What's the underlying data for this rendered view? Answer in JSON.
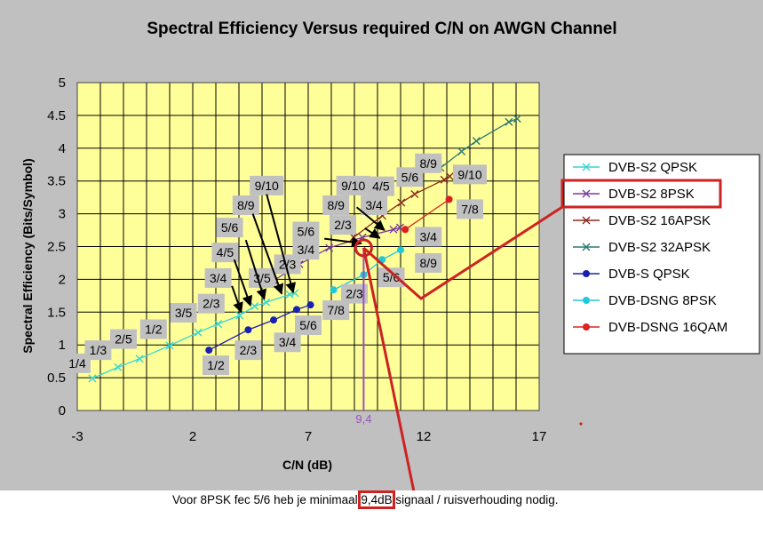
{
  "chart_data": {
    "type": "scatter",
    "title": "Spectral Efficiency Versus required C/N on AWGN Channel",
    "xlabel": "C/N (dB)",
    "ylabel": "Spectral Efficiency (Bits/Symbol)",
    "xlim": [
      -3,
      17
    ],
    "ylim": [
      0,
      5
    ],
    "xticks": [
      "-3",
      "2",
      "7",
      "12",
      "17"
    ],
    "yticks": [
      "0",
      "0.5",
      "1",
      "1.5",
      "2",
      "2.5",
      "3",
      "3.5",
      "4",
      "4.5",
      "5"
    ],
    "grid": true,
    "legend_position": "right",
    "series": [
      {
        "name": "DVB-S2 QPSK",
        "color": "#33d6d6",
        "marker": "x",
        "line": true,
        "points": [
          [
            -2.35,
            0.49
          ],
          [
            -1.24,
            0.66
          ],
          [
            -0.3,
            0.79
          ],
          [
            1.0,
            0.99
          ],
          [
            2.23,
            1.19
          ],
          [
            3.1,
            1.32
          ],
          [
            4.03,
            1.45
          ],
          [
            4.68,
            1.59
          ],
          [
            5.18,
            1.65
          ],
          [
            6.2,
            1.77
          ],
          [
            6.42,
            1.79
          ]
        ]
      },
      {
        "name": "DVB-S2 8PSK",
        "color": "#7a3a9a",
        "marker": "x",
        "line": true,
        "points": [
          [
            5.5,
            1.98
          ],
          [
            6.62,
            2.23
          ],
          [
            7.91,
            2.48
          ],
          [
            9.35,
            2.64
          ],
          [
            10.69,
            2.76
          ],
          [
            10.98,
            2.79
          ]
        ]
      },
      {
        "name": "DVB-S2 16APSK",
        "color": "#8b2a1a",
        "marker": "x",
        "line": true,
        "points": [
          [
            8.97,
            2.64
          ],
          [
            10.21,
            2.97
          ],
          [
            11.03,
            3.17
          ],
          [
            11.61,
            3.3
          ],
          [
            12.89,
            3.52
          ],
          [
            13.13,
            3.57
          ]
        ]
      },
      {
        "name": "DVB-S2 32APSK",
        "color": "#2a7a70",
        "marker": "x",
        "line": true,
        "points": [
          [
            12.73,
            3.7
          ],
          [
            13.64,
            3.95
          ],
          [
            14.28,
            4.11
          ],
          [
            15.69,
            4.4
          ],
          [
            16.05,
            4.45
          ]
        ]
      },
      {
        "name": "DVB-S QPSK",
        "color": "#1a20b0",
        "marker": "dot",
        "line": true,
        "points": [
          [
            2.7,
            0.92
          ],
          [
            4.4,
            1.23
          ],
          [
            5.5,
            1.38
          ],
          [
            6.5,
            1.54
          ],
          [
            7.1,
            1.61
          ]
        ]
      },
      {
        "name": "DVB-DSNG 8PSK",
        "color": "#20c8d8",
        "marker": "dot",
        "line": true,
        "points": [
          [
            8.1,
            1.84
          ],
          [
            9.4,
            2.07
          ],
          [
            10.2,
            2.3
          ],
          [
            11.0,
            2.45
          ]
        ]
      },
      {
        "name": "DVB-DSNG 16QAM",
        "color": "#dd2020",
        "marker": "dot",
        "line": true,
        "points": [
          [
            11.2,
            2.76
          ],
          [
            13.1,
            3.22
          ]
        ]
      }
    ],
    "annotations": [
      {
        "text": "1/4",
        "x": -3.0,
        "y": 0.72
      },
      {
        "text": "1/3",
        "x": -2.1,
        "y": 0.92
      },
      {
        "text": "2/5",
        "x": -1.0,
        "y": 1.09
      },
      {
        "text": "1/2",
        "x": 0.3,
        "y": 1.24
      },
      {
        "text": "3/5",
        "x": 1.6,
        "y": 1.49
      },
      {
        "text": "2/3",
        "x": 2.8,
        "y": 1.63
      },
      {
        "text": "3/4",
        "x": 3.1,
        "y": 2.02
      },
      {
        "text": "4/5",
        "x": 3.4,
        "y": 2.41
      },
      {
        "text": "5/6",
        "x": 3.6,
        "y": 2.79
      },
      {
        "text": "8/9",
        "x": 4.3,
        "y": 3.13
      },
      {
        "text": "9/10",
        "x": 5.2,
        "y": 3.43
      },
      {
        "text": "3/5",
        "x": 5.0,
        "y": 2.02
      },
      {
        "text": "2/3",
        "x": 6.1,
        "y": 2.23
      },
      {
        "text": "3/4",
        "x": 6.9,
        "y": 2.45
      },
      {
        "text": "5/6",
        "x": 6.9,
        "y": 2.73
      },
      {
        "text": "8/9",
        "x": 8.2,
        "y": 3.13
      },
      {
        "text": "9/10",
        "x": 8.95,
        "y": 3.43
      },
      {
        "text": "2/3",
        "x": 8.5,
        "y": 2.83
      },
      {
        "text": "3/4",
        "x": 9.85,
        "y": 3.13
      },
      {
        "text": "4/5",
        "x": 10.15,
        "y": 3.42
      },
      {
        "text": "5/6",
        "x": 11.4,
        "y": 3.56
      },
      {
        "text": "8/9",
        "x": 12.2,
        "y": 3.77
      },
      {
        "text": "9/10",
        "x": 14.0,
        "y": 3.6
      },
      {
        "text": "7/8",
        "x": 14.0,
        "y": 3.07
      },
      {
        "text": "3/4",
        "x": 12.2,
        "y": 2.65
      },
      {
        "text": "8/9",
        "x": 12.2,
        "y": 2.25
      },
      {
        "text": "5/6",
        "x": 10.6,
        "y": 2.03
      },
      {
        "text": "2/3",
        "x": 9.0,
        "y": 1.78
      },
      {
        "text": "7/8",
        "x": 8.2,
        "y": 1.53
      },
      {
        "text": "5/6",
        "x": 7.0,
        "y": 1.3
      },
      {
        "text": "3/4",
        "x": 6.1,
        "y": 1.04
      },
      {
        "text": "2/3",
        "x": 4.4,
        "y": 0.92
      },
      {
        "text": "1/2",
        "x": 3.0,
        "y": 0.69
      }
    ],
    "arrows": [
      {
        "from": [
          3.7,
          1.9
        ],
        "to": [
          4.1,
          1.5
        ]
      },
      {
        "from": [
          3.8,
          2.3
        ],
        "to": [
          4.5,
          1.6
        ]
      },
      {
        "from": [
          4.3,
          2.6
        ],
        "to": [
          5.1,
          1.7
        ]
      },
      {
        "from": [
          4.6,
          3.0
        ],
        "to": [
          5.85,
          1.78
        ]
      },
      {
        "from": [
          5.2,
          3.3
        ],
        "to": [
          6.35,
          1.8
        ]
      },
      {
        "from": [
          7.7,
          2.62
        ],
        "to": [
          9.3,
          2.55
        ]
      },
      {
        "from": [
          9.1,
          3.1
        ],
        "to": [
          10.3,
          2.75
        ]
      },
      {
        "from": [
          9.45,
          2.78
        ],
        "to": [
          10.1,
          2.63
        ]
      }
    ],
    "marker_value": {
      "label": "9,4",
      "x": 9.4,
      "y": 2.48
    }
  },
  "caption": {
    "before": "Voor 8PSK fec 5/6 heb je minimaal ",
    "highlight": "9,4dB",
    "after": " signaal / ruisverhouding nodig."
  },
  "legend_highlight": "DVB-S2 8PSK"
}
